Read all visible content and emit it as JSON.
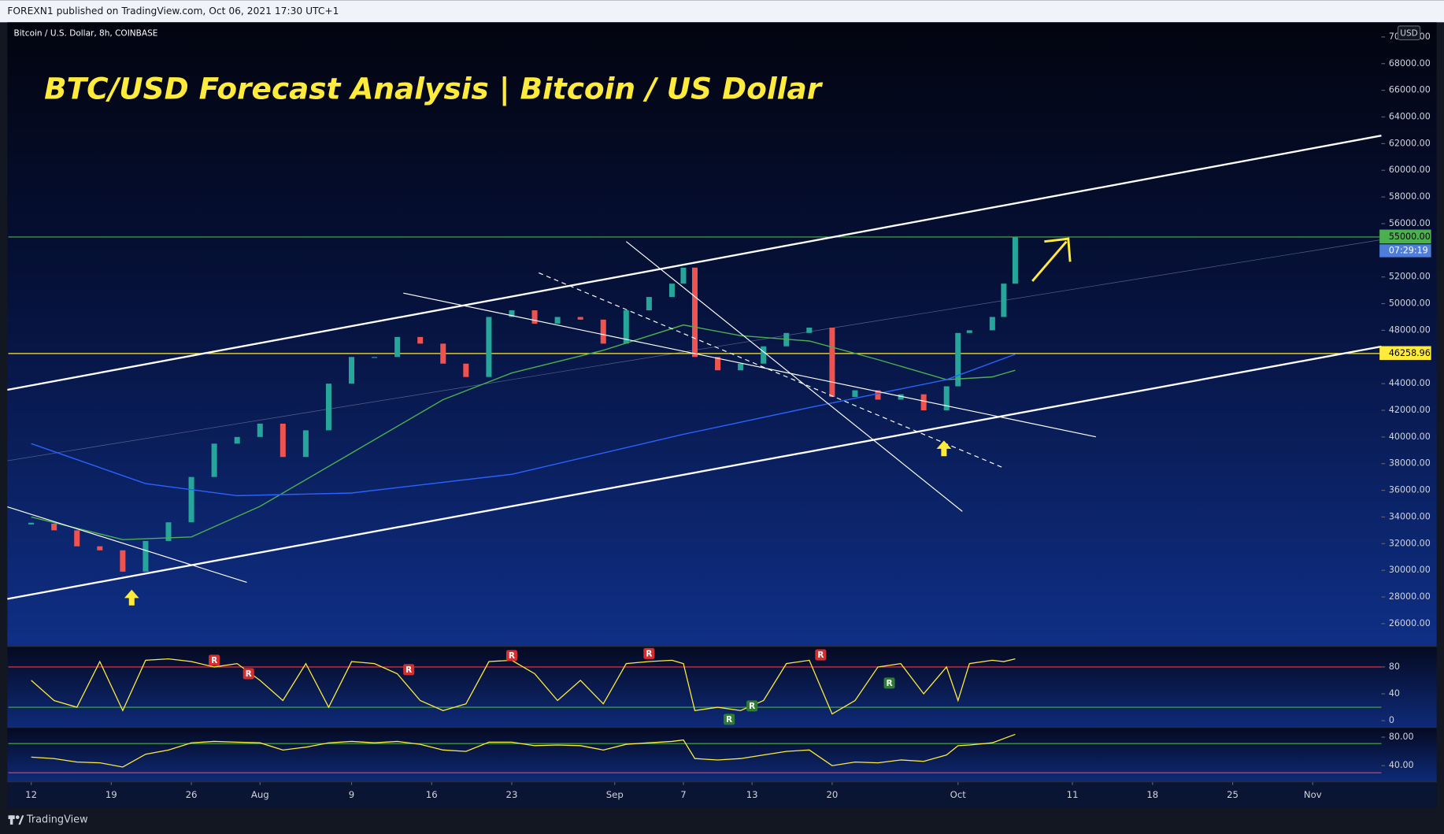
{
  "header": {
    "text": "FOREXN1 published on TradingView.com, Oct 06, 2021 17:30 UTC+1"
  },
  "footer": {
    "brand": "TradingView"
  },
  "chart_data": [
    {
      "type": "candlestick",
      "symbol": "Bitcoin / U.S. Dollar, 8h, COINBASE",
      "title": "BTC/USD Forecast Analysis | Bitcoin / US Dollar",
      "currency": "USD",
      "countdown": "07:29:19",
      "up_color": "#26a69a",
      "down_color": "#ef5350",
      "x": [
        "Jul 12",
        "Jul 14",
        "Jul 16",
        "Jul 18",
        "Jul 20",
        "Jul 22",
        "Jul 24",
        "Jul 26",
        "Jul 28",
        "Jul 30",
        "Aug 1",
        "Aug 3",
        "Aug 5",
        "Aug 7",
        "Aug 9",
        "Aug 11",
        "Aug 13",
        "Aug 15",
        "Aug 17",
        "Aug 19",
        "Aug 21",
        "Aug 23",
        "Aug 25",
        "Aug 27",
        "Aug 29",
        "Aug 31",
        "Sep 2",
        "Sep 4",
        "Sep 6",
        "Sep 7",
        "Sep 8",
        "Sep 10",
        "Sep 12",
        "Sep 14",
        "Sep 16",
        "Sep 18",
        "Sep 20",
        "Sep 22",
        "Sep 24",
        "Sep 26",
        "Sep 28",
        "Sep 30",
        "Oct 1",
        "Oct 2",
        "Oct 4",
        "Oct 5",
        "Oct 6"
      ],
      "values": [
        33500,
        33000,
        31800,
        31500,
        29900,
        32200,
        33600,
        37000,
        39500,
        40000,
        41000,
        38500,
        40500,
        44000,
        46000,
        46000,
        47500,
        47000,
        45500,
        44500,
        49000,
        49500,
        48500,
        49000,
        48800,
        47000,
        49500,
        50500,
        51500,
        52700,
        46000,
        45000,
        45500,
        46800,
        47800,
        48200,
        43000,
        43500,
        42800,
        43200,
        42000,
        43800,
        47800,
        48000,
        49000,
        51500,
        55000
      ],
      "overlays": [
        {
          "color": "#4caf50",
          "x": [
            "Jul 12",
            "Jul 20",
            "Jul 26",
            "Aug 1",
            "Aug 9",
            "Aug 17",
            "Aug 23",
            "Aug 31",
            "Sep 7",
            "Sep 12",
            "Sep 18",
            "Sep 24",
            "Sep 30",
            "Oct 4",
            "Oct 6"
          ],
          "values": [
            34000,
            32300,
            32500,
            34800,
            38800,
            42800,
            44800,
            46500,
            48400,
            47600,
            47200,
            45800,
            44300,
            44500,
            45000
          ]
        },
        {
          "color": "#2962ff",
          "x": [
            "Jul 12",
            "Jul 22",
            "Jul 30",
            "Aug 9",
            "Aug 23",
            "Sep 7",
            "Sep 18",
            "Sep 30",
            "Oct 6"
          ],
          "values": [
            39500,
            36500,
            35600,
            35800,
            37200,
            40200,
            42200,
            44300,
            46200
          ]
        }
      ],
      "hlines": [
        {
          "value": 55000,
          "label": "55000.00",
          "color": "#4caf50"
        },
        {
          "value": 46258.96,
          "label": "46258.96",
          "color": "#ffeb3b"
        }
      ],
      "ylim": [
        24400,
        71100
      ],
      "yticks": [
        {
          "value": 26000,
          "label": "26000.00"
        },
        {
          "value": 28000,
          "label": "28000.00"
        },
        {
          "value": 30000,
          "label": "30000.00"
        },
        {
          "value": 32000,
          "label": "32000.00"
        },
        {
          "value": 34000,
          "label": "34000.00"
        },
        {
          "value": 36000,
          "label": "36000.00"
        },
        {
          "value": 38000,
          "label": "38000.00"
        },
        {
          "value": 40000,
          "label": "40000.00"
        },
        {
          "value": 42000,
          "label": "42000.00"
        },
        {
          "value": 44000,
          "label": "44000.00"
        },
        {
          "value": 46000,
          "label": "46000.00"
        },
        {
          "value": 48000,
          "label": "48000.00"
        },
        {
          "value": 50000,
          "label": "50000.00"
        },
        {
          "value": 52000,
          "label": "52000.00"
        },
        {
          "value": 54000,
          "label": "54000.00"
        },
        {
          "value": 56000,
          "label": "56000.00"
        },
        {
          "value": 58000,
          "label": "58000.00"
        },
        {
          "value": 60000,
          "label": "60000.00"
        },
        {
          "value": 62000,
          "label": "62000.00"
        },
        {
          "value": 64000,
          "label": "64000.00"
        },
        {
          "value": 66000,
          "label": "66000.00"
        },
        {
          "value": 68000,
          "label": "68000.00"
        },
        {
          "value": 70000,
          "label": "70000.00"
        }
      ],
      "xlim": [
        "Jul 10",
        "Nov 7"
      ],
      "xticks": [
        {
          "value": "Jul 12",
          "label": "12"
        },
        {
          "value": "Jul 19",
          "label": "19"
        },
        {
          "value": "Jul 26",
          "label": "26"
        },
        {
          "value": "Aug 1",
          "label": "Aug"
        },
        {
          "value": "Aug 9",
          "label": "9"
        },
        {
          "value": "Aug 16",
          "label": "16"
        },
        {
          "value": "Aug 23",
          "label": "23"
        },
        {
          "value": "Sep 1",
          "label": "Sep"
        },
        {
          "value": "Sep 7",
          "label": "7"
        },
        {
          "value": "Sep 13",
          "label": "13"
        },
        {
          "value": "Sep 20",
          "label": "20"
        },
        {
          "value": "Oct 1",
          "label": "Oct"
        },
        {
          "value": "Oct 11",
          "label": "11"
        },
        {
          "value": "Oct 18",
          "label": "18"
        },
        {
          "value": "Oct 25",
          "label": "25"
        },
        {
          "value": "Nov 1",
          "label": "Nov"
        }
      ]
    },
    {
      "type": "line",
      "color": "#ffeb3b",
      "x": [
        "Jul 12",
        "Jul 14",
        "Jul 16",
        "Jul 18",
        "Jul 20",
        "Jul 22",
        "Jul 24",
        "Jul 26",
        "Jul 28",
        "Jul 30",
        "Aug 1",
        "Aug 3",
        "Aug 5",
        "Aug 7",
        "Aug 9",
        "Aug 11",
        "Aug 13",
        "Aug 15",
        "Aug 17",
        "Aug 19",
        "Aug 21",
        "Aug 23",
        "Aug 25",
        "Aug 27",
        "Aug 29",
        "Aug 31",
        "Sep 2",
        "Sep 4",
        "Sep 6",
        "Sep 7",
        "Sep 8",
        "Sep 10",
        "Sep 12",
        "Sep 14",
        "Sep 16",
        "Sep 18",
        "Sep 20",
        "Sep 22",
        "Sep 24",
        "Sep 26",
        "Sep 28",
        "Sep 30",
        "Oct 1",
        "Oct 2",
        "Oct 4",
        "Oct 5",
        "Oct 6"
      ],
      "values": [
        60,
        30,
        20,
        88,
        15,
        90,
        92,
        88,
        80,
        85,
        60,
        30,
        85,
        20,
        88,
        85,
        70,
        30,
        15,
        25,
        88,
        90,
        70,
        30,
        60,
        25,
        85,
        88,
        90,
        85,
        15,
        20,
        15,
        30,
        85,
        90,
        10,
        30,
        80,
        85,
        40,
        80,
        30,
        85,
        90,
        88,
        92
      ],
      "hlines": [
        {
          "value": 80,
          "color": "#f23645"
        },
        {
          "value": 20,
          "color": "#4caf50"
        }
      ],
      "annotations": [
        {
          "text": "R",
          "x": "Jul 28",
          "y": 90,
          "color": "#d32f2f"
        },
        {
          "text": "R",
          "x": "Jul 31",
          "y": 70,
          "color": "#d32f2f"
        },
        {
          "text": "R",
          "x": "Aug 14",
          "y": 76,
          "color": "#d32f2f"
        },
        {
          "text": "R",
          "x": "Aug 23",
          "y": 97,
          "color": "#d32f2f"
        },
        {
          "text": "R",
          "x": "Sep 4",
          "y": 100,
          "color": "#d32f2f"
        },
        {
          "text": "R",
          "x": "Sep 19",
          "y": 98,
          "color": "#d32f2f"
        },
        {
          "text": "R",
          "x": "Sep 11",
          "y": 2,
          "color": "#2e7d32"
        },
        {
          "text": "R",
          "x": "Sep 13",
          "y": 22,
          "color": "#2e7d32"
        },
        {
          "text": "R",
          "x": "Sep 25",
          "y": 56,
          "color": "#2e7d32"
        }
      ],
      "ylim": [
        -8,
        110
      ],
      "yticks": [
        0,
        40,
        80
      ]
    },
    {
      "type": "line",
      "color": "#ffeb3b",
      "x": [
        "Jul 12",
        "Jul 14",
        "Jul 16",
        "Jul 18",
        "Jul 20",
        "Jul 22",
        "Jul 24",
        "Jul 26",
        "Jul 28",
        "Jul 30",
        "Aug 1",
        "Aug 3",
        "Aug 5",
        "Aug 7",
        "Aug 9",
        "Aug 11",
        "Aug 13",
        "Aug 15",
        "Aug 17",
        "Aug 19",
        "Aug 21",
        "Aug 23",
        "Aug 25",
        "Aug 27",
        "Aug 29",
        "Aug 31",
        "Sep 2",
        "Sep 4",
        "Sep 6",
        "Sep 7",
        "Sep 8",
        "Sep 10",
        "Sep 12",
        "Sep 14",
        "Sep 16",
        "Sep 18",
        "Sep 20",
        "Sep 22",
        "Sep 24",
        "Sep 26",
        "Sep 28",
        "Sep 30",
        "Oct 1",
        "Oct 2",
        "Oct 4",
        "Oct 5",
        "Oct 6"
      ],
      "values": [
        52,
        50,
        45,
        44,
        38,
        56,
        62,
        72,
        74,
        73,
        72,
        62,
        66,
        72,
        74,
        72,
        74,
        70,
        62,
        60,
        73,
        73,
        68,
        69,
        68,
        62,
        70,
        72,
        74,
        76,
        50,
        48,
        50,
        55,
        60,
        62,
        40,
        45,
        44,
        48,
        46,
        55,
        68,
        69,
        72,
        78,
        84
      ],
      "hlines": [
        {
          "value": 71,
          "color": "#4caf50"
        },
        {
          "value": 30,
          "color": "#f23645"
        }
      ],
      "ylim": [
        18,
        93
      ],
      "yticks": [
        {
          "value": 40,
          "label": "40.00"
        },
        {
          "value": 80,
          "label": "80.00"
        }
      ]
    }
  ]
}
